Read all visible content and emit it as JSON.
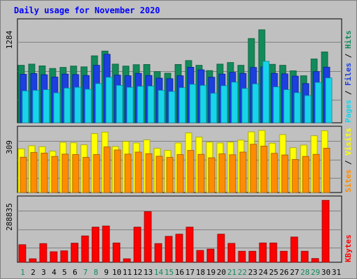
{
  "chart_data": [
    {
      "type": "bar",
      "title": "Daily usage for November 2020",
      "panel": "hits-files-pages",
      "ymax_label": "1284",
      "ymax": 1284,
      "categories": [
        "1",
        "2",
        "3",
        "4",
        "5",
        "6",
        "7",
        "8",
        "9",
        "10",
        "11",
        "12",
        "13",
        "14",
        "15",
        "16",
        "17",
        "18",
        "19",
        "20",
        "21",
        "22",
        "23",
        "24",
        "25",
        "26",
        "27",
        "28",
        "29",
        "30",
        "31"
      ],
      "series": [
        {
          "name": "Hits",
          "color": "#138a5a",
          "values": [
            730,
            745,
            723,
            690,
            703,
            720,
            710,
            850,
            910,
            745,
            720,
            738,
            740,
            650,
            630,
            740,
            790,
            730,
            662,
            745,
            765,
            730,
            1070,
            1180,
            742,
            730,
            660,
            597,
            810,
            900,
            0
          ]
        },
        {
          "name": "Files",
          "color": "#1c3fe0",
          "values": [
            615,
            625,
            610,
            580,
            618,
            612,
            600,
            730,
            870,
            605,
            597,
            627,
            600,
            567,
            560,
            597,
            705,
            672,
            578,
            618,
            640,
            627,
            702,
            710,
            627,
            621,
            592,
            498,
            650,
            706,
            0
          ]
        },
        {
          "name": "Pages",
          "color": "#18d4ea",
          "values": [
            405,
            412,
            420,
            380,
            440,
            450,
            425,
            497,
            577,
            475,
            450,
            462,
            465,
            412,
            397,
            445,
            488,
            475,
            375,
            470,
            515,
            435,
            493,
            780,
            455,
            420,
            382,
            345,
            512,
            569,
            0
          ]
        }
      ],
      "secondary_labels": [
        {
          "text": "Pages",
          "color": "#18d4ea"
        },
        {
          "text": " / ",
          "color": "#000000"
        },
        {
          "text": "Files",
          "color": "#1c3fe0"
        },
        {
          "text": " / ",
          "color": "#000000"
        },
        {
          "text": "Hits",
          "color": "#138a5a"
        }
      ]
    },
    {
      "type": "bar",
      "panel": "visits-sites",
      "ymax_label": "309",
      "ymax": 309,
      "categories": [
        "1",
        "2",
        "3",
        "4",
        "5",
        "6",
        "7",
        "8",
        "9",
        "10",
        "11",
        "12",
        "13",
        "14",
        "15",
        "16",
        "17",
        "18",
        "19",
        "20",
        "21",
        "22",
        "23",
        "24",
        "25",
        "26",
        "27",
        "28",
        "29",
        "30",
        "31"
      ],
      "series": [
        {
          "name": "Visits",
          "color": "#ffff00",
          "values": [
            213,
            228,
            223,
            201,
            244,
            242,
            232,
            287,
            294,
            224,
            249,
            241,
            256,
            215,
            205,
            241,
            290,
            270,
            245,
            241,
            245,
            255,
            295,
            302,
            240,
            282,
            218,
            231,
            276,
            301,
            0
          ]
        },
        {
          "name": "Sites",
          "color": "#ff8c00",
          "values": [
            172,
            195,
            192,
            176,
            187,
            185,
            171,
            185,
            222,
            207,
            187,
            197,
            189,
            177,
            171,
            185,
            205,
            186,
            169,
            188,
            184,
            197,
            235,
            226,
            191,
            183,
            161,
            176,
            186,
            216,
            0
          ]
        }
      ],
      "secondary_labels": [
        {
          "text": "Sites",
          "color": "#ff8c00"
        },
        {
          "text": " / ",
          "color": "#000000"
        },
        {
          "text": "Visits",
          "color": "#ffff00"
        }
      ]
    },
    {
      "type": "bar",
      "panel": "kbytes",
      "ymax_label": "288835",
      "ymax": 288835,
      "categories": [
        "1",
        "2",
        "3",
        "4",
        "5",
        "6",
        "7",
        "8",
        "9",
        "10",
        "11",
        "12",
        "13",
        "14",
        "15",
        "16",
        "17",
        "18",
        "19",
        "20",
        "21",
        "22",
        "23",
        "24",
        "25",
        "26",
        "27",
        "28",
        "29",
        "30",
        "31"
      ],
      "series": [
        {
          "name": "KBytes",
          "color": "#ff0000",
          "values": [
            80000,
            16000,
            85000,
            48000,
            52000,
            87000,
            120000,
            160000,
            165000,
            88000,
            16000,
            160000,
            230000,
            85000,
            118000,
            128000,
            160000,
            54000,
            60000,
            128000,
            86000,
            50000,
            50000,
            88000,
            88000,
            50000,
            115000,
            50000,
            17000,
            282000,
            0
          ]
        }
      ],
      "secondary_labels": [
        {
          "text": "KBytes",
          "color": "#ff0000"
        }
      ]
    }
  ],
  "x_axis": {
    "labels": [
      "1",
      "2",
      "3",
      "4",
      "5",
      "6",
      "7",
      "8",
      "9",
      "10",
      "11",
      "12",
      "13",
      "14",
      "15",
      "16",
      "17",
      "18",
      "19",
      "20",
      "21",
      "22",
      "23",
      "24",
      "25",
      "26",
      "27",
      "28",
      "29",
      "30",
      "31"
    ],
    "weekend_days": [
      "1",
      "7",
      "8",
      "14",
      "15",
      "21",
      "22",
      "28",
      "29"
    ],
    "weekday_color": "#000000",
    "weekend_color": "#138a5a"
  },
  "colors": {
    "background": "#c0c0c0",
    "plot_background": "#c0c0c0",
    "title": "#0000ff",
    "grid": "#808080"
  }
}
